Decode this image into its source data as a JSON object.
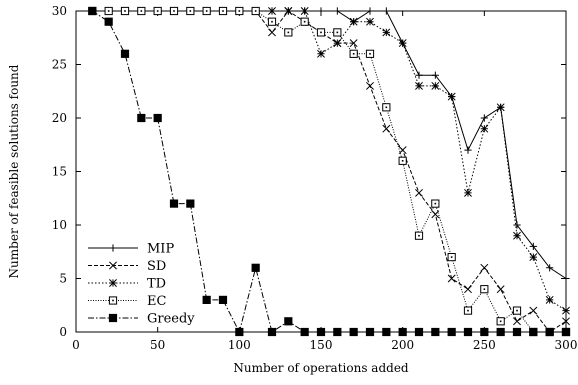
{
  "chart_data": {
    "type": "line",
    "title": "",
    "xlabel": "Number of operations added",
    "ylabel": "Number of feasible solutions found",
    "xlim": [
      0,
      300
    ],
    "ylim": [
      0,
      30
    ],
    "xticks": [
      "0",
      "50",
      "100",
      "150",
      "200",
      "250",
      "300"
    ],
    "yticks": [
      "0",
      "5",
      "10",
      "15",
      "20",
      "25",
      "30"
    ],
    "grid": false,
    "legend_position": "bottom-left",
    "x": [
      10,
      20,
      30,
      40,
      50,
      60,
      70,
      80,
      90,
      100,
      110,
      120,
      130,
      140,
      150,
      160,
      170,
      180,
      190,
      200,
      210,
      220,
      230,
      240,
      250,
      260,
      270,
      280,
      290,
      300
    ],
    "series": [
      {
        "name": "MIP",
        "marker": "plus",
        "dash": "solid",
        "values": [
          30,
          30,
          30,
          30,
          30,
          30,
          30,
          30,
          30,
          30,
          30,
          30,
          30,
          30,
          30,
          30,
          29,
          30,
          30,
          27,
          24,
          24,
          22,
          17,
          20,
          21,
          10,
          8,
          6,
          5
        ]
      },
      {
        "name": "SD",
        "marker": "cross",
        "dash": "dashed",
        "values": [
          30,
          30,
          30,
          30,
          30,
          30,
          30,
          30,
          30,
          30,
          30,
          28,
          30,
          29,
          28,
          27,
          27,
          23,
          19,
          17,
          13,
          11,
          5,
          4,
          6,
          4,
          1,
          2,
          0,
          1
        ]
      },
      {
        "name": "TD",
        "marker": "star",
        "dash": "dotted",
        "values": [
          30,
          30,
          30,
          30,
          30,
          30,
          30,
          30,
          30,
          30,
          30,
          30,
          30,
          30,
          26,
          27,
          29,
          29,
          28,
          27,
          23,
          23,
          22,
          13,
          19,
          21,
          9,
          7,
          3,
          2
        ]
      },
      {
        "name": "EC",
        "marker": "square-open",
        "dash": "dense-dotted",
        "values": [
          30,
          30,
          30,
          30,
          30,
          30,
          30,
          30,
          30,
          30,
          30,
          29,
          28,
          29,
          28,
          28,
          26,
          26,
          21,
          16,
          9,
          12,
          7,
          2,
          4,
          1,
          2,
          0,
          0,
          0
        ]
      },
      {
        "name": "Greedy",
        "marker": "square-filled",
        "dash": "dash-dot",
        "values": [
          30,
          29,
          26,
          20,
          20,
          12,
          12,
          3,
          3,
          0,
          6,
          0,
          1,
          0,
          0,
          0,
          0,
          0,
          0,
          0,
          0,
          0,
          0,
          0,
          0,
          0,
          0,
          0,
          0,
          0
        ]
      }
    ]
  }
}
